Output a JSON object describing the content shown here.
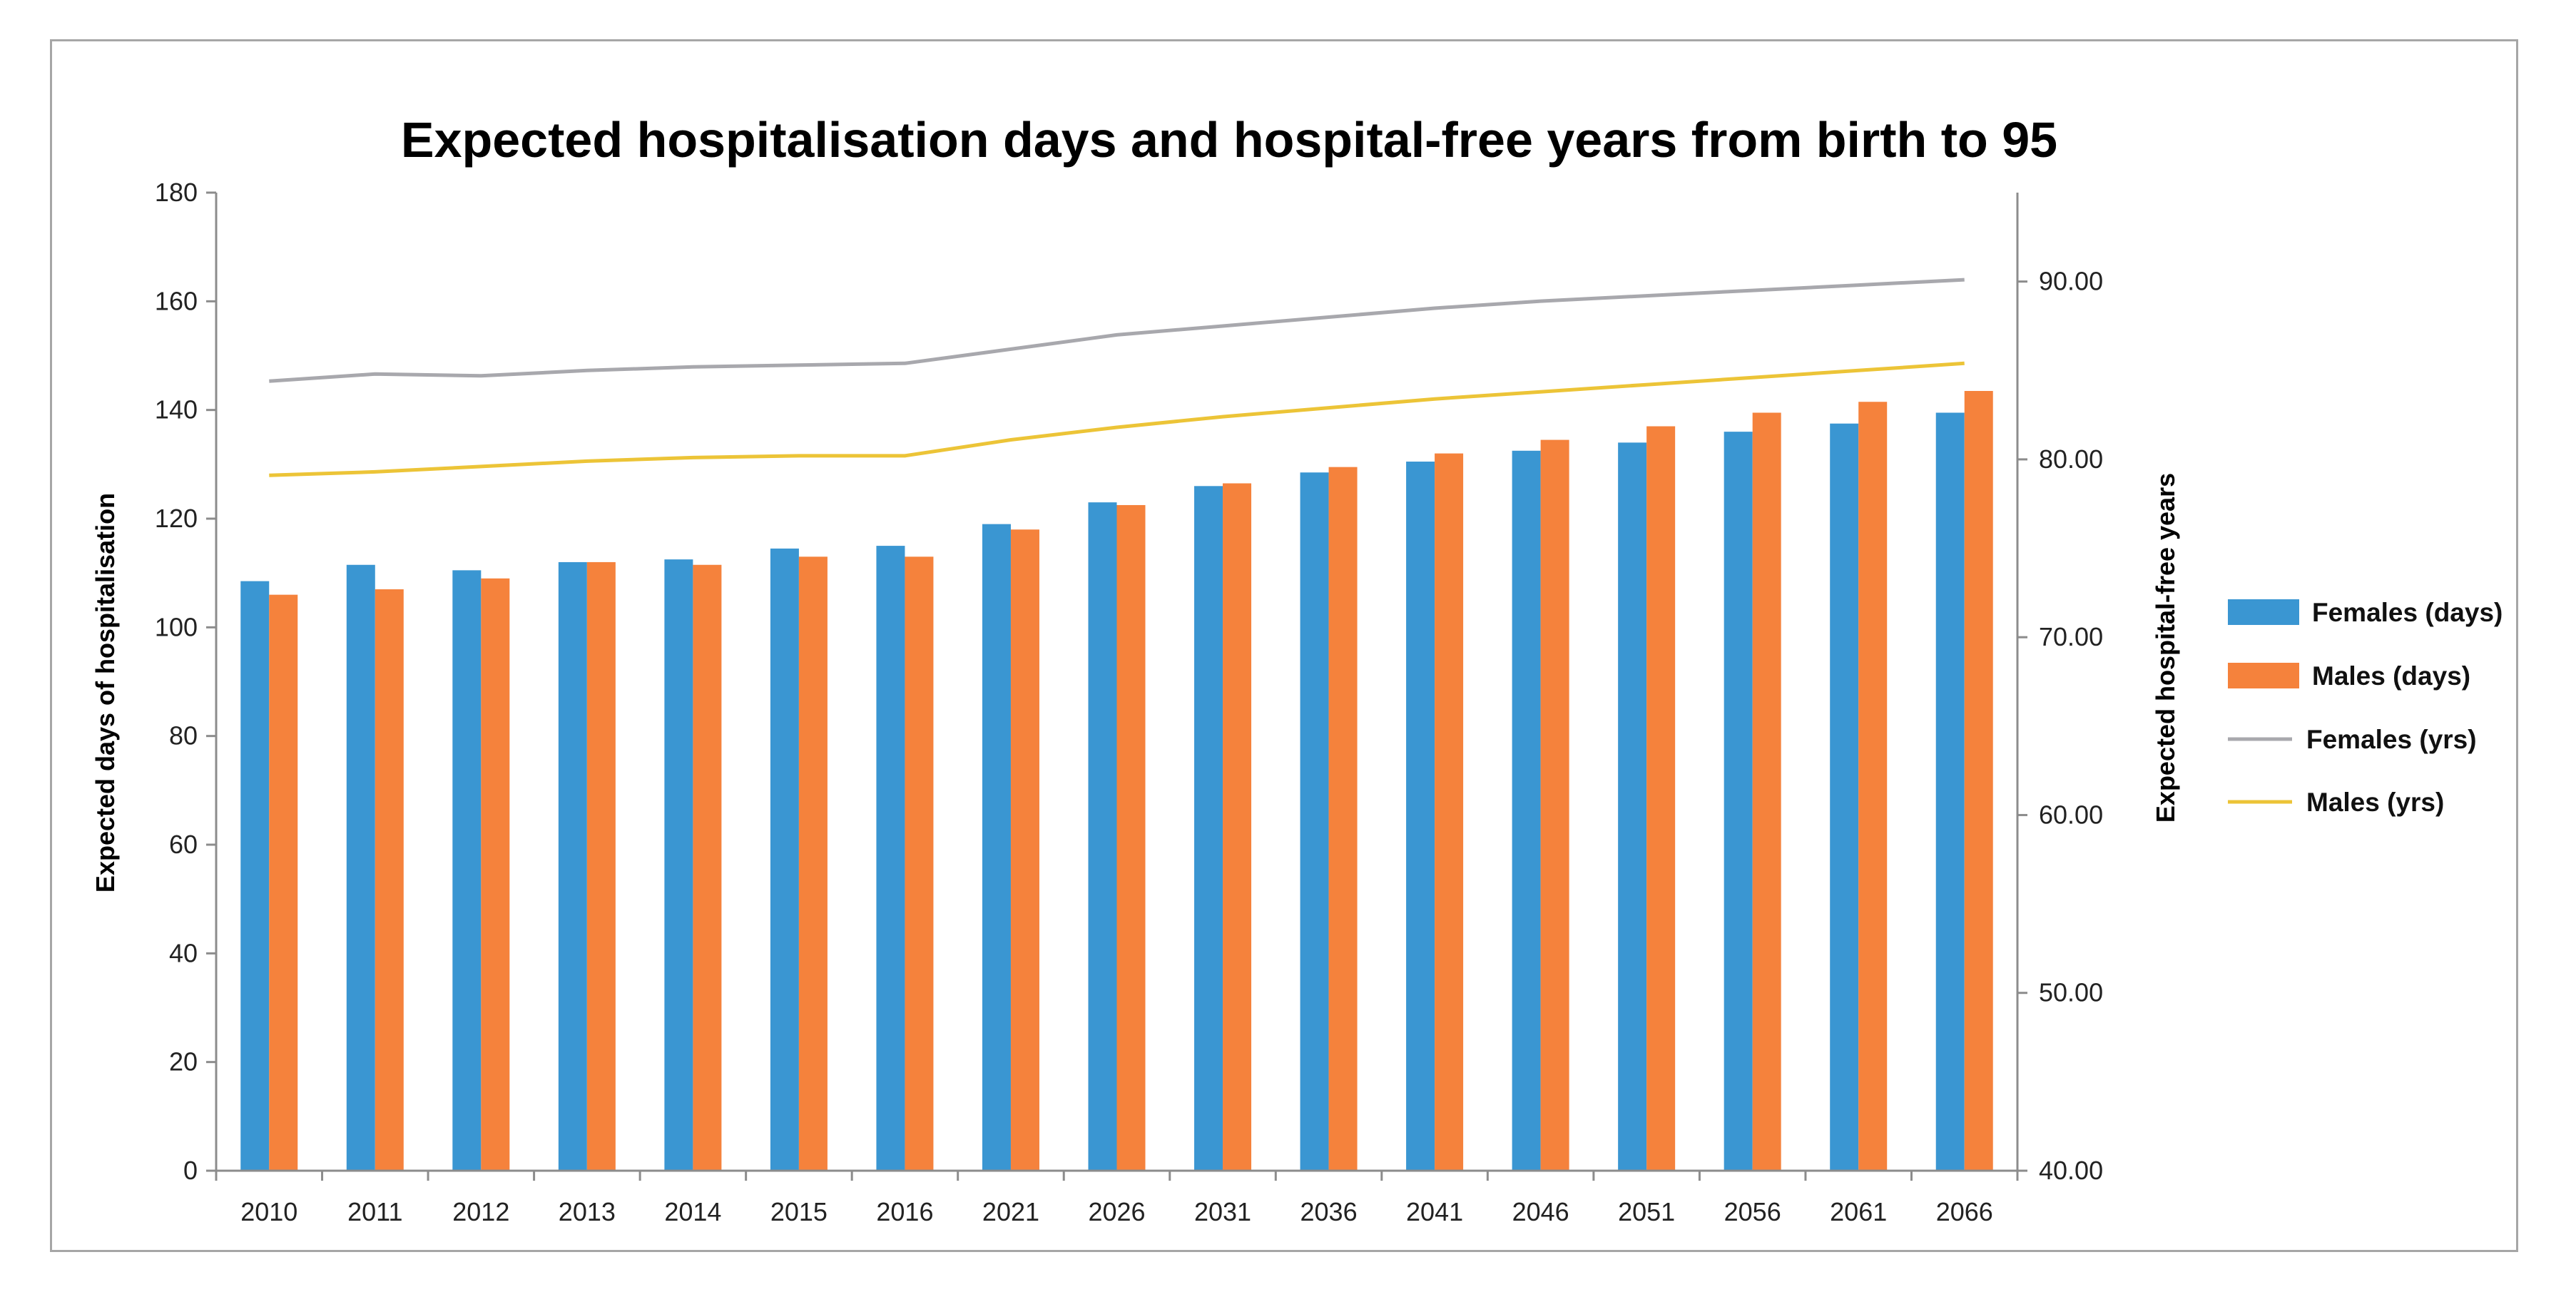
{
  "chart_data": {
    "type": "bar",
    "title": "Expected hospitalisation days and hospital-free years from birth to 95",
    "ylabel": "Expected days of hospitalisation",
    "y2label": "Expected hospital-free years",
    "ylim": [
      0,
      180
    ],
    "yticks": [
      0,
      20,
      40,
      60,
      80,
      100,
      120,
      140,
      160,
      180
    ],
    "y2lim": [
      40,
      95
    ],
    "y2ticks": [
      "40.00",
      "50.00",
      "60.00",
      "70.00",
      "80.00",
      "90.00"
    ],
    "categories": [
      "2010",
      "2011",
      "2012",
      "2013",
      "2014",
      "2015",
      "2016",
      "2021",
      "2026",
      "2031",
      "2036",
      "2041",
      "2046",
      "2051",
      "2056",
      "2061",
      "2066"
    ],
    "legend_position": "right",
    "colors": {
      "females_days": "#3a96d2",
      "males_days": "#f5823c",
      "females_yrs": "#a8a8ad",
      "males_yrs": "#ecc437"
    },
    "series": [
      {
        "name": "Females (days)",
        "type": "bar",
        "axis": "left",
        "values": [
          108.5,
          111.5,
          110.5,
          112,
          112.5,
          114.5,
          115,
          119,
          123,
          126,
          128.5,
          130.5,
          132.5,
          134,
          136,
          137.5,
          139.5
        ]
      },
      {
        "name": "Males (days)",
        "type": "bar",
        "axis": "left",
        "values": [
          106,
          107,
          109,
          112,
          111.5,
          113,
          113,
          118,
          122.5,
          126.5,
          129.5,
          132,
          134.5,
          137,
          139.5,
          141.5,
          143.5
        ]
      },
      {
        "name": "Females (yrs)",
        "type": "line",
        "axis": "right",
        "values": [
          84.4,
          84.8,
          84.7,
          85.0,
          85.2,
          85.3,
          85.4,
          86.2,
          87.0,
          87.5,
          88.0,
          88.5,
          88.9,
          89.2,
          89.5,
          89.8,
          90.1
        ]
      },
      {
        "name": "Males (yrs)",
        "type": "line",
        "axis": "right",
        "values": [
          79.1,
          79.3,
          79.6,
          79.9,
          80.1,
          80.2,
          80.2,
          81.1,
          81.8,
          82.4,
          82.9,
          83.4,
          83.8,
          84.2,
          84.6,
          85.0,
          85.4
        ]
      }
    ]
  }
}
